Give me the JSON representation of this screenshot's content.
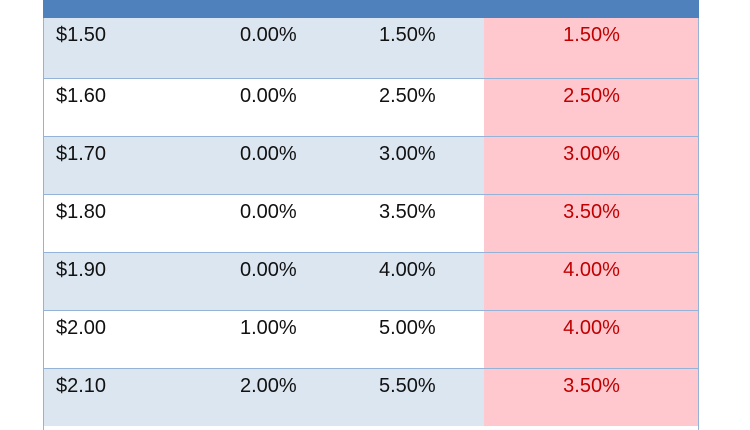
{
  "table": {
    "rows": [
      {
        "price": "$1.50",
        "col_a": "0.00%",
        "col_b": "1.50%",
        "col_c": "1.50%"
      },
      {
        "price": "$1.60",
        "col_a": "0.00%",
        "col_b": "2.50%",
        "col_c": "2.50%"
      },
      {
        "price": "$1.70",
        "col_a": "0.00%",
        "col_b": "3.00%",
        "col_c": "3.00%"
      },
      {
        "price": "$1.80",
        "col_a": "0.00%",
        "col_b": "3.50%",
        "col_c": "3.50%"
      },
      {
        "price": "$1.90",
        "col_a": "0.00%",
        "col_b": "4.00%",
        "col_c": "4.00%"
      },
      {
        "price": "$2.00",
        "col_a": "1.00%",
        "col_b": "5.00%",
        "col_c": "4.00%"
      },
      {
        "price": "$2.10",
        "col_a": "2.00%",
        "col_b": "5.50%",
        "col_c": "3.50%"
      }
    ]
  },
  "colors": {
    "header": "#4f81bd",
    "band_row": "#dce6f1",
    "highlight_fill": "#ffc7ce",
    "highlight_text": "#c00000",
    "border": "#95b3d7"
  }
}
